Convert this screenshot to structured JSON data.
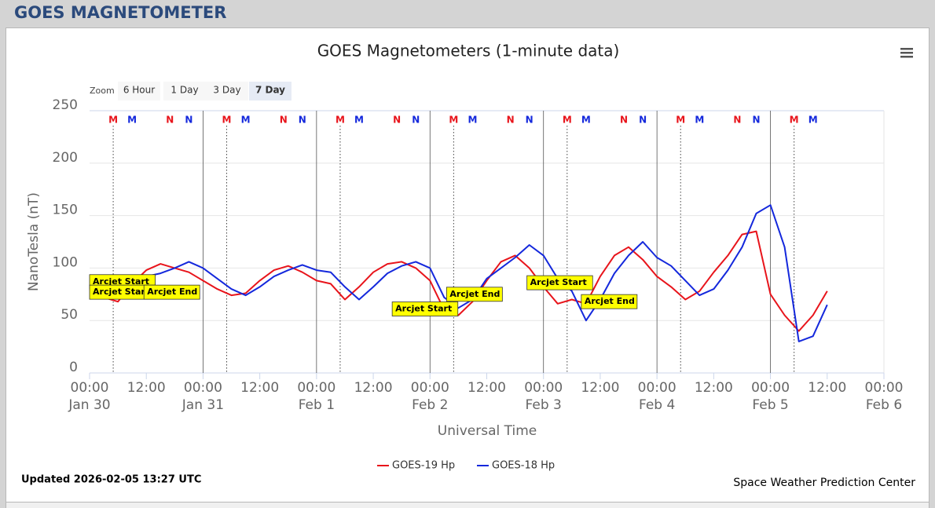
{
  "header": {
    "title": "GOES MAGNETOMETER"
  },
  "zoom": {
    "label": "Zoom",
    "buttons": [
      "6 Hour",
      "1 Day",
      "3 Day",
      "7 Day"
    ],
    "selected": "7 Day"
  },
  "chart_data": {
    "type": "line",
    "title": "GOES Magnetometers (1-minute data)",
    "x_label": "Universal Time",
    "y_label": "NanoTesla (nT)",
    "x": [
      "Jan 30 00:00",
      "Jan 30 03:00",
      "Jan 30 06:00",
      "Jan 30 09:00",
      "Jan 30 12:00",
      "Jan 30 15:00",
      "Jan 30 18:00",
      "Jan 30 21:00",
      "Jan 31 00:00",
      "Jan 31 03:00",
      "Jan 31 06:00",
      "Jan 31 09:00",
      "Jan 31 12:00",
      "Jan 31 15:00",
      "Jan 31 18:00",
      "Jan 31 21:00",
      "Feb 1 00:00",
      "Feb 1 03:00",
      "Feb 1 06:00",
      "Feb 1 09:00",
      "Feb 1 12:00",
      "Feb 1 15:00",
      "Feb 1 18:00",
      "Feb 1 21:00",
      "Feb 2 00:00",
      "Feb 2 03:00",
      "Feb 2 06:00",
      "Feb 2 09:00",
      "Feb 2 12:00",
      "Feb 2 15:00",
      "Feb 2 18:00",
      "Feb 2 21:00",
      "Feb 3 00:00",
      "Feb 3 03:00",
      "Feb 3 06:00",
      "Feb 3 09:00",
      "Feb 3 12:00",
      "Feb 3 15:00",
      "Feb 3 18:00",
      "Feb 3 21:00",
      "Feb 4 00:00",
      "Feb 4 03:00",
      "Feb 4 06:00",
      "Feb 4 09:00",
      "Feb 4 12:00",
      "Feb 4 15:00",
      "Feb 4 18:00",
      "Feb 4 21:00",
      "Feb 5 00:00",
      "Feb 5 03:00",
      "Feb 5 06:00",
      "Feb 5 09:00",
      "Feb 5 12:00"
    ],
    "series": [
      {
        "name": "GOES-19 Hp",
        "color": "#e8141b",
        "values": [
          80,
          72,
          68,
          85,
          98,
          104,
          100,
          96,
          88,
          80,
          74,
          76,
          88,
          98,
          102,
          96,
          88,
          85,
          70,
          82,
          96,
          104,
          106,
          100,
          88,
          60,
          55,
          68,
          88,
          106,
          112,
          100,
          82,
          66,
          70,
          66,
          92,
          112,
          120,
          108,
          92,
          82,
          70,
          78,
          96,
          112,
          132,
          135,
          75,
          55,
          40,
          55,
          78
        ]
      },
      {
        "name": "GOES-18 Hp",
        "color": "#1428dc",
        "values": [
          78,
          80,
          72,
          82,
          92,
          95,
          100,
          106,
          100,
          90,
          80,
          74,
          82,
          92,
          98,
          103,
          98,
          96,
          82,
          70,
          82,
          95,
          102,
          106,
          100,
          72,
          62,
          70,
          90,
          100,
          110,
          122,
          112,
          90,
          78,
          50,
          70,
          95,
          112,
          125,
          110,
          102,
          88,
          74,
          80,
          98,
          120,
          152,
          160,
          120,
          30,
          35,
          65
        ]
      }
    ],
    "xlim": [
      "Jan 30 00:00",
      "Feb 6 00:00"
    ],
    "xticks": [
      {
        "value": "Jan 30 00:00",
        "label": "00:00 Jan 30"
      },
      {
        "value": "Jan 30 12:00",
        "label": "12:00"
      },
      {
        "value": "Jan 31 00:00",
        "label": "00:00 Jan 31"
      },
      {
        "value": "Jan 31 12:00",
        "label": "12:00"
      },
      {
        "value": "Feb 1 00:00",
        "label": "00:00 Feb 1"
      },
      {
        "value": "Feb 1 12:00",
        "label": "12:00"
      },
      {
        "value": "Feb 2 00:00",
        "label": "00:00 Feb 2"
      },
      {
        "value": "Feb 2 12:00",
        "label": "12:00"
      },
      {
        "value": "Feb 3 00:00",
        "label": "00:00 Feb 3"
      },
      {
        "value": "Feb 3 12:00",
        "label": "12:00"
      },
      {
        "value": "Feb 4 00:00",
        "label": "00:00 Feb 4"
      },
      {
        "value": "Feb 4 12:00",
        "label": "12:00"
      },
      {
        "value": "Feb 5 00:00",
        "label": "00:00 Feb 5"
      },
      {
        "value": "Feb 5 12:00",
        "label": "12:00"
      },
      {
        "value": "Feb 6 00:00",
        "label": "00:00 Feb 6"
      }
    ],
    "ylim": [
      0,
      250
    ],
    "yticks": [
      0,
      50,
      100,
      150,
      200,
      250
    ],
    "grid": true,
    "markers": [
      {
        "label": "M",
        "x": "Jan 30 05:00",
        "color": "#e8141b"
      },
      {
        "label": "M",
        "x": "Jan 30 09:00",
        "color": "#1428dc"
      },
      {
        "label": "N",
        "x": "Jan 30 17:00",
        "color": "#e8141b"
      },
      {
        "label": "N",
        "x": "Jan 30 21:00",
        "color": "#1428dc"
      },
      {
        "label": "M",
        "x": "Jan 31 05:00",
        "color": "#e8141b"
      },
      {
        "label": "M",
        "x": "Jan 31 09:00",
        "color": "#1428dc"
      },
      {
        "label": "N",
        "x": "Jan 31 17:00",
        "color": "#e8141b"
      },
      {
        "label": "N",
        "x": "Jan 31 21:00",
        "color": "#1428dc"
      },
      {
        "label": "M",
        "x": "Feb 1 05:00",
        "color": "#e8141b"
      },
      {
        "label": "M",
        "x": "Feb 1 09:00",
        "color": "#1428dc"
      },
      {
        "label": "N",
        "x": "Feb 1 17:00",
        "color": "#e8141b"
      },
      {
        "label": "N",
        "x": "Feb 1 21:00",
        "color": "#1428dc"
      },
      {
        "label": "M",
        "x": "Feb 2 05:00",
        "color": "#e8141b"
      },
      {
        "label": "M",
        "x": "Feb 2 09:00",
        "color": "#1428dc"
      },
      {
        "label": "N",
        "x": "Feb 2 17:00",
        "color": "#e8141b"
      },
      {
        "label": "N",
        "x": "Feb 2 21:00",
        "color": "#1428dc"
      },
      {
        "label": "M",
        "x": "Feb 3 05:00",
        "color": "#e8141b"
      },
      {
        "label": "M",
        "x": "Feb 3 09:00",
        "color": "#1428dc"
      },
      {
        "label": "N",
        "x": "Feb 3 17:00",
        "color": "#e8141b"
      },
      {
        "label": "N",
        "x": "Feb 3 21:00",
        "color": "#1428dc"
      },
      {
        "label": "M",
        "x": "Feb 4 05:00",
        "color": "#e8141b"
      },
      {
        "label": "M",
        "x": "Feb 4 09:00",
        "color": "#1428dc"
      },
      {
        "label": "N",
        "x": "Feb 4 17:00",
        "color": "#e8141b"
      },
      {
        "label": "N",
        "x": "Feb 4 21:00",
        "color": "#1428dc"
      },
      {
        "label": "M",
        "x": "Feb 5 05:00",
        "color": "#e8141b"
      },
      {
        "label": "M",
        "x": "Feb 5 09:00",
        "color": "#1428dc"
      }
    ],
    "annotations": [
      {
        "text": "Arcjet Start",
        "x": "Jan 30 00:00",
        "y": 87
      },
      {
        "text": "Arcjet Start",
        "x": "Jan 30 00:00",
        "y": 77
      },
      {
        "text": "Arcjet End",
        "x": "Jan 30 11:30",
        "y": 77
      },
      {
        "text": "Arcjet Start",
        "x": "Feb 1 16:00",
        "y": 61
      },
      {
        "text": "Arcjet End",
        "x": "Feb 2 03:30",
        "y": 75
      },
      {
        "text": "Arcjet Start",
        "x": "Feb 2 20:30",
        "y": 86
      },
      {
        "text": "Arcjet End",
        "x": "Feb 3 08:00",
        "y": 68
      }
    ],
    "legend": "bottom"
  },
  "footer": {
    "updated": "Updated 2026-02-05 13:27 UTC",
    "credit": "Space Weather Prediction Center"
  }
}
